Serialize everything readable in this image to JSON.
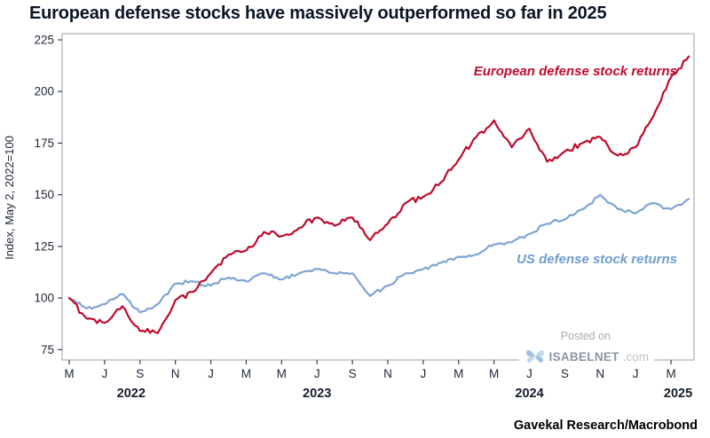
{
  "title": "European defense stocks have massively outperformed so far in 2025",
  "source": "Gavekal Research/Macrobond",
  "watermark": {
    "posted_on": "Posted on",
    "site": "ISABELNET",
    "domain": ".com"
  },
  "chart_data": {
    "type": "line",
    "title": "European defense stocks have massively outperformed so far in 2025",
    "ylabel": "Index, May 2, 2022=100",
    "xlabel": "",
    "ylim": [
      70,
      228
    ],
    "yticks": [
      75,
      100,
      125,
      150,
      175,
      200,
      225
    ],
    "grid": false,
    "legend_position": "inline-annotations",
    "months": [
      "2022-05",
      "2022-06",
      "2022-07",
      "2022-08",
      "2022-09",
      "2022-10",
      "2022-11",
      "2022-12",
      "2023-01",
      "2023-02",
      "2023-03",
      "2023-04",
      "2023-05",
      "2023-06",
      "2023-07",
      "2023-08",
      "2023-09",
      "2023-10",
      "2023-11",
      "2023-12",
      "2024-01",
      "2024-02",
      "2024-03",
      "2024-04",
      "2024-05",
      "2024-06",
      "2024-07",
      "2024-08",
      "2024-09",
      "2024-10",
      "2024-11",
      "2024-12",
      "2025-01",
      "2025-02",
      "2025-03",
      "2025-04"
    ],
    "x_ticks": [
      {
        "m": 0,
        "label": "M"
      },
      {
        "m": 2,
        "label": "J"
      },
      {
        "m": 4,
        "label": "S"
      },
      {
        "m": 6,
        "label": "N"
      },
      {
        "m": 8,
        "label": "J"
      },
      {
        "m": 10,
        "label": "M"
      },
      {
        "m": 12,
        "label": "M"
      },
      {
        "m": 14,
        "label": "J"
      },
      {
        "m": 16,
        "label": "S"
      },
      {
        "m": 18,
        "label": "N"
      },
      {
        "m": 20,
        "label": "J"
      },
      {
        "m": 22,
        "label": "M"
      },
      {
        "m": 24,
        "label": "M"
      },
      {
        "m": 26,
        "label": "J"
      },
      {
        "m": 28,
        "label": "S"
      },
      {
        "m": 30,
        "label": "N"
      },
      {
        "m": 32,
        "label": "J"
      },
      {
        "m": 34,
        "label": "M"
      }
    ],
    "year_labels": [
      {
        "label": "2022",
        "center_m": 3.5
      },
      {
        "label": "2023",
        "center_m": 14
      },
      {
        "label": "2024",
        "center_m": 26
      },
      {
        "label": "2025",
        "center_m": 34.4
      }
    ],
    "series": [
      {
        "id": "european",
        "name": "European defense stock returns",
        "color": "#be0b2d",
        "noise": 1.6,
        "values": [
          100,
          90,
          88,
          96,
          84,
          83,
          99,
          103,
          112,
          121,
          123,
          132,
          130,
          134,
          139,
          135,
          139,
          128,
          136,
          146,
          149,
          156,
          167,
          178,
          186,
          173,
          182,
          166,
          171,
          175,
          178,
          169,
          173,
          188,
          207,
          217
        ]
      },
      {
        "id": "us",
        "name": "US defense stock returns",
        "color": "#7ea4d3",
        "noise": 1.1,
        "values": [
          100,
          95,
          97,
          102,
          93,
          97,
          107,
          108,
          106,
          110,
          108,
          112,
          109,
          112,
          114,
          112,
          112,
          101,
          106,
          112,
          114,
          117,
          120,
          121,
          126,
          127,
          131,
          136,
          138,
          143,
          150,
          143,
          141,
          146,
          143,
          148
        ]
      }
    ]
  }
}
